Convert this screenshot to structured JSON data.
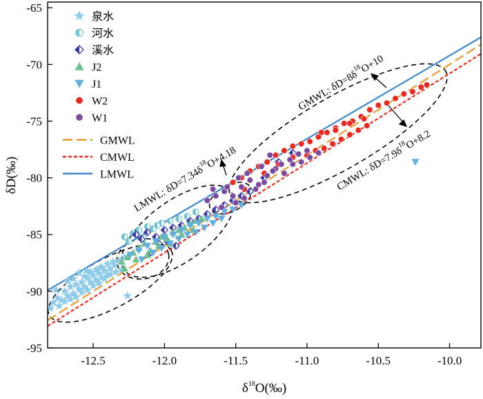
{
  "chart_data": {
    "type": "scatter",
    "xlabel": {
      "prefix": "δ",
      "sup": "18",
      "suffix": "O(‰)"
    },
    "ylabel": "δD(‰)",
    "xlim": [
      -12.82,
      -9.78
    ],
    "ylim": [
      -95,
      -64.5
    ],
    "x_ticks": [
      -12.5,
      -12.0,
      -11.5,
      -11.0,
      -10.5,
      -10.0
    ],
    "x_tick_labels": [
      "-12.5",
      "-12.0",
      "-11.5",
      "-11.0",
      "-10.5",
      "-10.0"
    ],
    "y_ticks": [
      -95,
      -90,
      -85,
      -80,
      -75,
      -70,
      -65
    ],
    "y_tick_labels": [
      "-95",
      "-90",
      "-85",
      "-80",
      "-75",
      "-70",
      "-65"
    ],
    "grid": false,
    "legend_position": "top-left",
    "series": [
      {
        "name": "泉水",
        "marker": "star",
        "color": "#8ecbea",
        "x": [
          -12.78,
          -12.75,
          -12.72,
          -12.7,
          -12.68,
          -12.66,
          -12.64,
          -12.62,
          -12.6,
          -12.58,
          -12.56,
          -12.54,
          -12.52,
          -12.5,
          -12.48,
          -12.46,
          -12.44,
          -12.42,
          -12.4,
          -12.38,
          -12.74,
          -12.7,
          -12.66,
          -12.62,
          -12.58,
          -12.54,
          -12.5,
          -12.46,
          -12.42,
          -12.38,
          -12.34,
          -12.3,
          -12.6,
          -12.55,
          -12.45,
          -12.35,
          -12.8,
          -12.76,
          -12.68,
          -12.64,
          -12.56,
          -12.52,
          -12.48,
          -12.44,
          -12.4,
          -12.36,
          -12.32,
          -12.28,
          -12.26
        ],
        "y": [
          -91.0,
          -90.6,
          -90.8,
          -90.0,
          -90.4,
          -89.6,
          -90.2,
          -89.4,
          -89.8,
          -89.2,
          -89.6,
          -88.8,
          -89.2,
          -88.6,
          -89.0,
          -88.4,
          -88.8,
          -88.2,
          -88.6,
          -88.0,
          -91.3,
          -90.9,
          -90.7,
          -90.5,
          -90.1,
          -89.9,
          -89.5,
          -89.3,
          -88.9,
          -88.5,
          -88.3,
          -88.1,
          -88.4,
          -88.2,
          -87.9,
          -87.7,
          -91.5,
          -89.9,
          -89.1,
          -88.9,
          -88.7,
          -88.3,
          -88.1,
          -87.9,
          -87.6,
          -87.4,
          -87.3,
          -87.0,
          -90.4
        ]
      },
      {
        "name": "河水",
        "marker": "half-circle",
        "color": "#6fc4d4",
        "x": [
          -12.28,
          -12.22,
          -12.18,
          -12.12,
          -12.08,
          -12.02,
          -11.96,
          -11.9,
          -11.84,
          -11.78,
          -12.25,
          -12.15,
          -12.05
        ],
        "y": [
          -85.2,
          -84.9,
          -84.6,
          -84.3,
          -84.5,
          -84.0,
          -83.8,
          -83.6,
          -83.4,
          -83.0,
          -85.6,
          -85.3,
          -84.2
        ]
      },
      {
        "name": "溪水",
        "marker": "diamond",
        "color": "#3a3aa0",
        "x": [
          -12.2,
          -12.16,
          -12.12,
          -12.06,
          -12.0,
          -11.94,
          -11.88,
          -11.82,
          -11.76,
          -11.7,
          -11.64,
          -11.58,
          -11.52,
          -11.46,
          -11.4,
          -11.3,
          -11.2,
          -11.1,
          -12.1,
          -12.04,
          -11.98,
          -11.92
        ],
        "y": [
          -85.0,
          -85.4,
          -84.8,
          -85.2,
          -84.6,
          -84.4,
          -84.2,
          -83.8,
          -83.6,
          -83.2,
          -82.8,
          -82.4,
          -82.0,
          -81.6,
          -81.2,
          -80.0,
          -78.6,
          -77.8,
          -86.6,
          -85.8,
          -85.6,
          -86.0
        ]
      },
      {
        "name": "J2",
        "marker": "triangle-up",
        "color": "#6fbf8f",
        "x": [
          -12.3,
          -12.26,
          -12.22,
          -12.18,
          -12.14,
          -12.1,
          -12.06,
          -12.02,
          -11.98,
          -11.94,
          -11.9,
          -11.86,
          -11.82,
          -11.78,
          -11.74,
          -12.28,
          -12.2,
          -12.12,
          -12.04,
          -11.96,
          -11.88,
          -11.8
        ],
        "y": [
          -87.4,
          -87.0,
          -86.6,
          -86.2,
          -85.8,
          -86.4,
          -85.6,
          -85.2,
          -85.4,
          -84.8,
          -84.6,
          -84.4,
          -84.0,
          -83.8,
          -83.6,
          -88.0,
          -87.2,
          -86.8,
          -86.0,
          -85.8,
          -85.0,
          -84.6
        ]
      },
      {
        "name": "J1",
        "marker": "triangle-down",
        "color": "#63aee0",
        "x": [
          -12.24,
          -12.18,
          -12.12,
          -12.06,
          -12.0,
          -11.94,
          -11.88,
          -11.82,
          -11.76,
          -11.7,
          -11.64,
          -11.58,
          -11.52,
          -11.46,
          -12.16,
          -12.08,
          -12.02,
          -11.96,
          -11.9,
          -11.84,
          -11.78,
          -11.72,
          -11.66,
          -11.6,
          -10.24
        ],
        "y": [
          -86.8,
          -86.4,
          -86.0,
          -85.6,
          -85.2,
          -85.0,
          -84.6,
          -84.2,
          -84.0,
          -83.6,
          -83.4,
          -83.0,
          -82.8,
          -82.4,
          -87.2,
          -86.6,
          -86.2,
          -85.8,
          -85.4,
          -85.0,
          -84.8,
          -84.4,
          -84.0,
          -83.6,
          -78.6
        ]
      },
      {
        "name": "W2",
        "marker": "circle",
        "color": "#e8291f",
        "x": [
          -11.52,
          -11.46,
          -11.4,
          -11.34,
          -11.28,
          -11.22,
          -11.16,
          -11.1,
          -11.04,
          -10.98,
          -10.92,
          -10.86,
          -10.8,
          -10.74,
          -10.68,
          -10.62,
          -10.56,
          -10.5,
          -10.44,
          -10.38,
          -10.32,
          -10.26,
          -10.2,
          -10.16,
          -11.0,
          -10.94,
          -10.88,
          -10.82,
          -10.76,
          -10.7,
          -10.64,
          -10.58,
          -11.3,
          -11.2,
          -11.1,
          -10.9,
          -10.8,
          -10.7,
          -10.6,
          -11.44
        ],
        "y": [
          -80.4,
          -80.0,
          -79.4,
          -79.0,
          -78.6,
          -78.0,
          -77.6,
          -77.2,
          -77.0,
          -76.8,
          -76.4,
          -76.0,
          -75.6,
          -75.2,
          -75.0,
          -74.6,
          -74.0,
          -73.6,
          -73.4,
          -73.0,
          -72.6,
          -72.4,
          -72.0,
          -71.8,
          -78.0,
          -77.6,
          -77.4,
          -77.0,
          -76.6,
          -76.2,
          -75.8,
          -75.4,
          -79.6,
          -78.8,
          -78.2,
          -76.0,
          -75.8,
          -75.2,
          -74.8,
          -81.0
        ]
      },
      {
        "name": "W1",
        "marker": "circle",
        "color": "#7a4a9e",
        "x": [
          -11.7,
          -11.64,
          -11.58,
          -11.52,
          -11.46,
          -11.4,
          -11.34,
          -11.28,
          -11.22,
          -11.16,
          -11.1,
          -11.04,
          -10.98,
          -10.92,
          -11.6,
          -11.5,
          -11.44,
          -11.36,
          -11.3,
          -11.24,
          -11.18,
          -11.12,
          -11.06,
          -11.0,
          -11.66,
          -11.56,
          -11.48,
          -11.42,
          -11.32,
          -11.26
        ],
        "y": [
          -82.0,
          -81.6,
          -81.2,
          -81.6,
          -80.8,
          -80.2,
          -80.6,
          -79.8,
          -79.2,
          -79.6,
          -78.8,
          -78.6,
          -78.2,
          -77.8,
          -82.6,
          -82.2,
          -81.8,
          -81.0,
          -80.4,
          -79.4,
          -78.8,
          -78.4,
          -77.9,
          -77.6,
          -81.0,
          -80.8,
          -80.0,
          -79.6,
          -79.0,
          -78.0
        ]
      }
    ],
    "lines": [
      {
        "name": "GMWL",
        "slope": 8,
        "intercept": 10,
        "color": "#e69a2f",
        "style": "dashed"
      },
      {
        "name": "CMWL",
        "slope": 7.9,
        "intercept": 8.2,
        "color": "#e8291f",
        "style": "dotted"
      },
      {
        "name": "LMWL",
        "slope": 7.34,
        "intercept": 4.18,
        "color": "#3f88c9",
        "style": "solid"
      }
    ],
    "annotations": {
      "gmwl_parts": [
        "GMWL: δD=8δ",
        "18",
        "O+10"
      ],
      "lmwl_parts": [
        "LMWL: δD=7.34δ",
        "18",
        "O+4.18"
      ],
      "cmwl_parts": [
        "CMWL: δD=7.9δ",
        "18",
        "O+8.2"
      ]
    }
  }
}
